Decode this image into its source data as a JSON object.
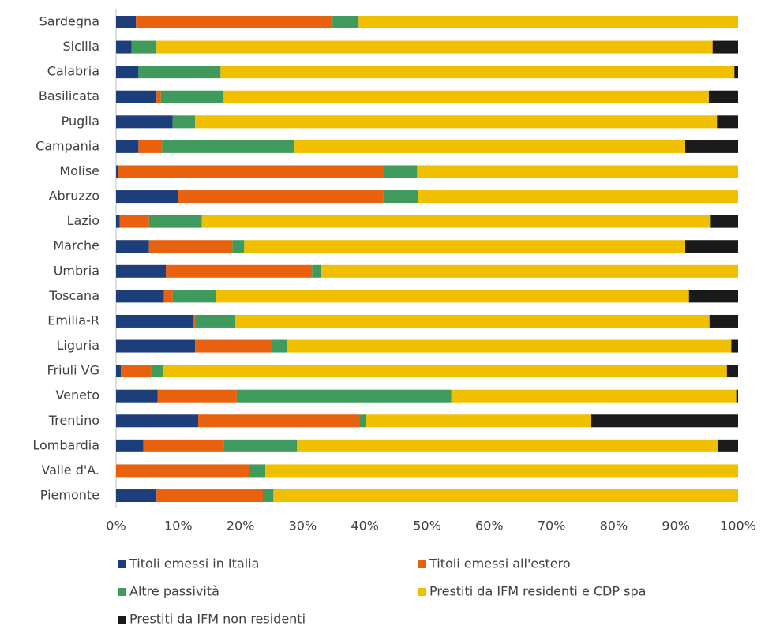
{
  "chart_data": {
    "type": "stacked_bar_horizontal",
    "categories": [
      "Sardegna",
      "Sicilia",
      "Calabria",
      "Basilicata",
      "Puglia",
      "Campania",
      "Molise",
      "Abruzzo",
      "Lazio",
      "Marche",
      "Umbria",
      "Toscana",
      "Emilia-R",
      "Liguria",
      "Friuli VG",
      "Veneto",
      "Trentino",
      "Lombardia",
      "Valle d'A.",
      "Piemonte"
    ],
    "series": [
      {
        "name": "Titoli emessi in Italia",
        "color": "#1c3f7c",
        "values": [
          3.2,
          2.5,
          3.6,
          6.5,
          9.1,
          3.6,
          0.3,
          10.0,
          0.6,
          5.3,
          8.0,
          7.7,
          12.4,
          12.7,
          0.8,
          6.7,
          13.2,
          4.4,
          0,
          6.5
        ]
      },
      {
        "name": "Titoli emessi all'estero",
        "color": "#e8610f",
        "values": [
          31.6,
          0,
          0,
          0.7,
          0,
          3.8,
          42.6,
          33.0,
          4.7,
          13.4,
          23.5,
          1.4,
          0.3,
          12.3,
          4.8,
          12.7,
          25.9,
          12.9,
          21.4,
          17.1
        ]
      },
      {
        "name": "Altre passività",
        "color": "#3f9a5c",
        "values": [
          4.2,
          4.0,
          13.2,
          10.1,
          3.6,
          21.3,
          5.5,
          5.6,
          8.5,
          1.9,
          1.4,
          7.0,
          6.5,
          2.5,
          1.9,
          34.5,
          1.0,
          11.8,
          2.6,
          1.7
        ]
      },
      {
        "name": "Prestiti da IFM residenti e CDP spa",
        "color": "#f0c000",
        "values": [
          61.0,
          89.4,
          82.6,
          78.0,
          83.9,
          62.8,
          51.6,
          51.4,
          81.8,
          70.9,
          67.1,
          76.0,
          76.2,
          71.4,
          90.7,
          45.8,
          36.3,
          67.7,
          76.0,
          74.7
        ]
      },
      {
        "name": "Prestiti da IFM non residenti",
        "color": "#1a1a1a",
        "values": [
          0,
          4.1,
          0.6,
          4.7,
          3.4,
          8.5,
          0,
          0,
          4.4,
          8.5,
          0,
          7.9,
          4.6,
          1.1,
          1.8,
          0.3,
          23.6,
          3.2,
          0,
          0
        ]
      }
    ],
    "xlim": [
      0,
      100
    ],
    "xticks": [
      {
        "value": 0,
        "label": "0%"
      },
      {
        "value": 10,
        "label": "10%"
      },
      {
        "value": 20,
        "label": "20%"
      },
      {
        "value": 30,
        "label": "30%"
      },
      {
        "value": 40,
        "label": "40%"
      },
      {
        "value": 50,
        "label": "50%"
      },
      {
        "value": 60,
        "label": "60%"
      },
      {
        "value": 70,
        "label": "70%"
      },
      {
        "value": 80,
        "label": "80%"
      },
      {
        "value": 90,
        "label": "90%"
      },
      {
        "value": 100,
        "label": "100%"
      }
    ],
    "legend": "bottom"
  }
}
